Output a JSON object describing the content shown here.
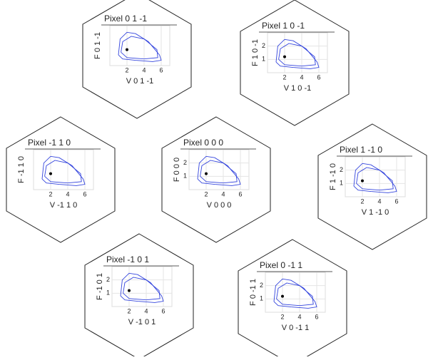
{
  "chart_data": [
    {
      "type": "line",
      "title": "Pixel 0 1 -1",
      "xlabel": "V 0 1 -1",
      "ylabel": "F 0 1 -1",
      "xlim": [
        0,
        7
      ],
      "ylim": [
        0,
        3
      ],
      "xticks": [
        2,
        4,
        6
      ],
      "grid": true,
      "series": [
        {
          "color": "#3344dd",
          "x": [
            1,
            1.2,
            2,
            3,
            4.5,
            5.8,
            6,
            5,
            3,
            1.5,
            1
          ],
          "values": [
            0.8,
            2,
            2.5,
            2.4,
            1.8,
            0.8,
            0.4,
            0.3,
            0.4,
            0.5,
            0.8
          ]
        },
        {
          "color": "#3344dd",
          "x": [
            1.3,
            1.5,
            2.5,
            4,
            5.5,
            5.6,
            4,
            2,
            1.3
          ],
          "values": [
            1,
            1.8,
            2.2,
            2,
            1.2,
            0.6,
            0.5,
            0.6,
            1
          ]
        }
      ],
      "points": {
        "color": "#000000",
        "x": [
          2
        ],
        "values": [
          1.2
        ]
      }
    },
    {
      "type": "line",
      "title": "Pixel 1 0 -1",
      "xlabel": "V 1 0 -1",
      "ylabel": "F 1 0 -1",
      "xlim": [
        0,
        7
      ],
      "ylim": [
        0,
        3
      ],
      "xticks": [
        2,
        4,
        6
      ],
      "yticks": [
        1,
        2
      ],
      "grid": true,
      "series": [
        {
          "color": "#3344dd",
          "x": [
            1,
            1.2,
            2,
            3,
            4.5,
            5.8,
            6,
            5,
            3,
            1.5,
            1
          ],
          "values": [
            0.8,
            2,
            2.5,
            2.4,
            1.8,
            0.8,
            0.4,
            0.3,
            0.4,
            0.5,
            0.8
          ]
        },
        {
          "color": "#3344dd",
          "x": [
            1.3,
            1.5,
            2.5,
            4,
            5.5,
            5.6,
            4,
            2,
            1.3
          ],
          "values": [
            1,
            1.8,
            2.2,
            2,
            1.2,
            0.6,
            0.5,
            0.6,
            1
          ]
        }
      ],
      "points": {
        "color": "#000000",
        "x": [
          2
        ],
        "values": [
          1.2
        ]
      }
    },
    {
      "type": "line",
      "title": "Pixel -1 1 0",
      "xlabel": "V -1 1 0",
      "ylabel": "F -1 1 0",
      "xlim": [
        0,
        7
      ],
      "ylim": [
        0,
        3
      ],
      "xticks": [
        2,
        4,
        6
      ],
      "grid": true,
      "series": [
        {
          "color": "#3344dd",
          "x": [
            1,
            1.2,
            2,
            3,
            4.5,
            5.8,
            6,
            5,
            3,
            1.5,
            1
          ],
          "values": [
            0.8,
            2,
            2.5,
            2.4,
            1.8,
            0.8,
            0.4,
            0.3,
            0.4,
            0.5,
            0.8
          ]
        },
        {
          "color": "#3344dd",
          "x": [
            1.3,
            1.5,
            2.5,
            4,
            5.5,
            5.6,
            4,
            2,
            1.3
          ],
          "values": [
            1,
            1.8,
            2.2,
            2,
            1.2,
            0.6,
            0.5,
            0.6,
            1
          ]
        }
      ],
      "points": {
        "color": "#000000",
        "x": [
          2
        ],
        "values": [
          1.2
        ]
      }
    },
    {
      "type": "line",
      "title": "Pixel 0 0 0",
      "xlabel": "V 0 0 0",
      "ylabel": "F 0 0 0",
      "xlim": [
        0,
        7
      ],
      "ylim": [
        0,
        3
      ],
      "xticks": [
        2,
        4,
        6
      ],
      "yticks": [
        1,
        2
      ],
      "grid": true,
      "series": [
        {
          "color": "#3344dd",
          "x": [
            1,
            1.2,
            2,
            3,
            4.5,
            5.8,
            6,
            5,
            3,
            1.5,
            1
          ],
          "values": [
            0.8,
            2,
            2.5,
            2.4,
            1.8,
            0.8,
            0.4,
            0.3,
            0.4,
            0.5,
            0.8
          ]
        },
        {
          "color": "#3344dd",
          "x": [
            1.3,
            1.5,
            2.5,
            4,
            5.5,
            5.6,
            4,
            2,
            1.3
          ],
          "values": [
            1,
            1.8,
            2.2,
            2,
            1.2,
            0.6,
            0.5,
            0.6,
            1
          ]
        }
      ],
      "points": {
        "color": "#000000",
        "x": [
          2
        ],
        "values": [
          1.2
        ]
      }
    },
    {
      "type": "line",
      "title": "Pixel 1 -1 0",
      "xlabel": "V 1 -1 0",
      "ylabel": "F 1 -1 0",
      "xlim": [
        0,
        7
      ],
      "ylim": [
        0,
        3
      ],
      "xticks": [
        2,
        4,
        6
      ],
      "yticks": [
        1,
        2
      ],
      "grid": true,
      "series": [
        {
          "color": "#3344dd",
          "x": [
            1,
            1.2,
            2,
            3,
            4.5,
            5.8,
            6,
            5,
            3,
            1.5,
            1
          ],
          "values": [
            0.8,
            2,
            2.5,
            2.4,
            1.8,
            0.8,
            0.4,
            0.3,
            0.4,
            0.5,
            0.8
          ]
        },
        {
          "color": "#3344dd",
          "x": [
            1.3,
            1.5,
            2.5,
            4,
            5.5,
            5.6,
            4,
            2,
            1.3
          ],
          "values": [
            1,
            1.8,
            2.2,
            2,
            1.2,
            0.6,
            0.5,
            0.6,
            1
          ]
        }
      ],
      "points": {
        "color": "#000000",
        "x": [
          2
        ],
        "values": [
          1.2
        ]
      }
    },
    {
      "type": "line",
      "title": "Pixel -1 0 1",
      "xlabel": "V -1 0 1",
      "ylabel": "F -1 0 1",
      "xlim": [
        0,
        7
      ],
      "ylim": [
        0,
        3
      ],
      "xticks": [
        2,
        4,
        6
      ],
      "yticks": [
        1,
        2
      ],
      "grid": true,
      "series": [
        {
          "color": "#3344dd",
          "x": [
            1,
            1.2,
            2,
            3,
            4.5,
            5.8,
            6,
            5,
            3,
            1.5,
            1
          ],
          "values": [
            0.8,
            2,
            2.5,
            2.4,
            1.8,
            0.8,
            0.4,
            0.3,
            0.4,
            0.5,
            0.8
          ]
        },
        {
          "color": "#3344dd",
          "x": [
            1.3,
            1.5,
            2.5,
            4,
            5.5,
            5.6,
            4,
            2,
            1.3
          ],
          "values": [
            1,
            1.8,
            2.2,
            2,
            1.2,
            0.6,
            0.5,
            0.6,
            1
          ]
        }
      ],
      "points": {
        "color": "#000000",
        "x": [
          2
        ],
        "values": [
          1.2
        ]
      }
    },
    {
      "type": "line",
      "title": "Pixel 0 -1 1",
      "xlabel": "V 0 -1 1",
      "ylabel": "F 0 -1 1",
      "xlim": [
        0,
        7
      ],
      "ylim": [
        0,
        3
      ],
      "xticks": [
        2,
        4,
        6
      ],
      "yticks": [
        1,
        2
      ],
      "grid": true,
      "series": [
        {
          "color": "#3344dd",
          "x": [
            1,
            1.2,
            2,
            3,
            4.5,
            5.8,
            6,
            5,
            3,
            1.5,
            1
          ],
          "values": [
            0.8,
            2,
            2.5,
            2.4,
            1.8,
            0.8,
            0.4,
            0.3,
            0.4,
            0.5,
            0.8
          ]
        },
        {
          "color": "#3344dd",
          "x": [
            1.3,
            1.5,
            2.5,
            4,
            5.5,
            5.6,
            4,
            2,
            1.3
          ],
          "values": [
            1,
            1.8,
            2.2,
            2,
            1.2,
            0.6,
            0.5,
            0.6,
            1
          ]
        }
      ],
      "points": {
        "color": "#000000",
        "x": [
          2
        ],
        "values": [
          1.2
        ]
      }
    }
  ]
}
